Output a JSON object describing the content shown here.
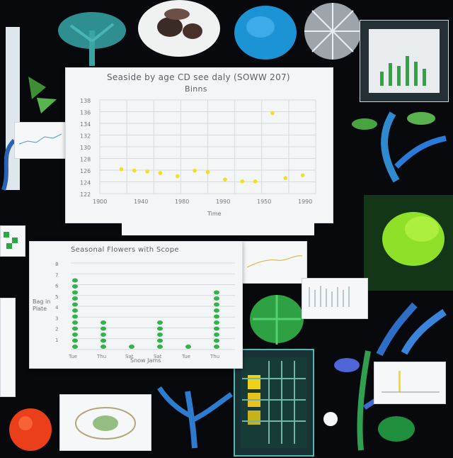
{
  "collage": {
    "theme_colors": {
      "background": "#07090d",
      "accent_green": "#2fb34a",
      "accent_blue": "#2a7bd8",
      "accent_yellow": "#f2df1f"
    }
  },
  "main_chart_panel": {
    "title_line_1": "Seaside by age CD see daly (SOWW 207)",
    "title_line_2": "Binns",
    "y_ticks": [
      "138",
      "136",
      "134",
      "132",
      "130",
      "128",
      "126",
      "124",
      "122"
    ],
    "x_ticks": [
      "1900",
      "1940",
      "1980",
      "1990",
      "1950",
      "1990"
    ],
    "xlabel": "Time"
  },
  "bar_chart_panel": {
    "title": "Seasonal Flowers with Scope",
    "ylabel": "Bag in Plate",
    "y_ticks": [
      "8",
      "7",
      "6",
      "5",
      "4",
      "3",
      "2",
      "1"
    ],
    "x_ticks": [
      "Tue",
      "Thu",
      "Sat",
      "Sat",
      "Tue",
      "Thu"
    ],
    "xlabel": "Snow Jams"
  },
  "chart_data": [
    {
      "type": "scatter",
      "title": "Seaside by age CD see daly (SOWW 207)",
      "subtitle": "Binns",
      "xlabel": "Time",
      "ylabel": "",
      "x": [
        0.5,
        0.8,
        1.1,
        1.4,
        1.8,
        2.2,
        2.5,
        2.9,
        3.3,
        3.6,
        4.0,
        4.3,
        4.7
      ],
      "y": [
        125.2,
        124.9,
        124.7,
        124.4,
        123.7,
        124.9,
        124.6,
        123.0,
        122.6,
        122.6,
        137.2,
        123.3,
        123.9
      ],
      "xlim": [
        0,
        5
      ],
      "ylim": [
        120,
        140
      ],
      "grid": true,
      "legend": "none"
    },
    {
      "type": "bar",
      "title": "Seasonal Flowers with Scope",
      "categories": [
        "Tue",
        "Thu",
        "Sat",
        "Sat",
        "Tue",
        "Thu"
      ],
      "values": [
        8,
        3.5,
        1,
        3.5,
        1,
        7
      ],
      "xlabel": "Snow Jams",
      "ylabel": "Bag in Plate",
      "ylim": [
        0,
        8
      ],
      "grid": true
    }
  ]
}
